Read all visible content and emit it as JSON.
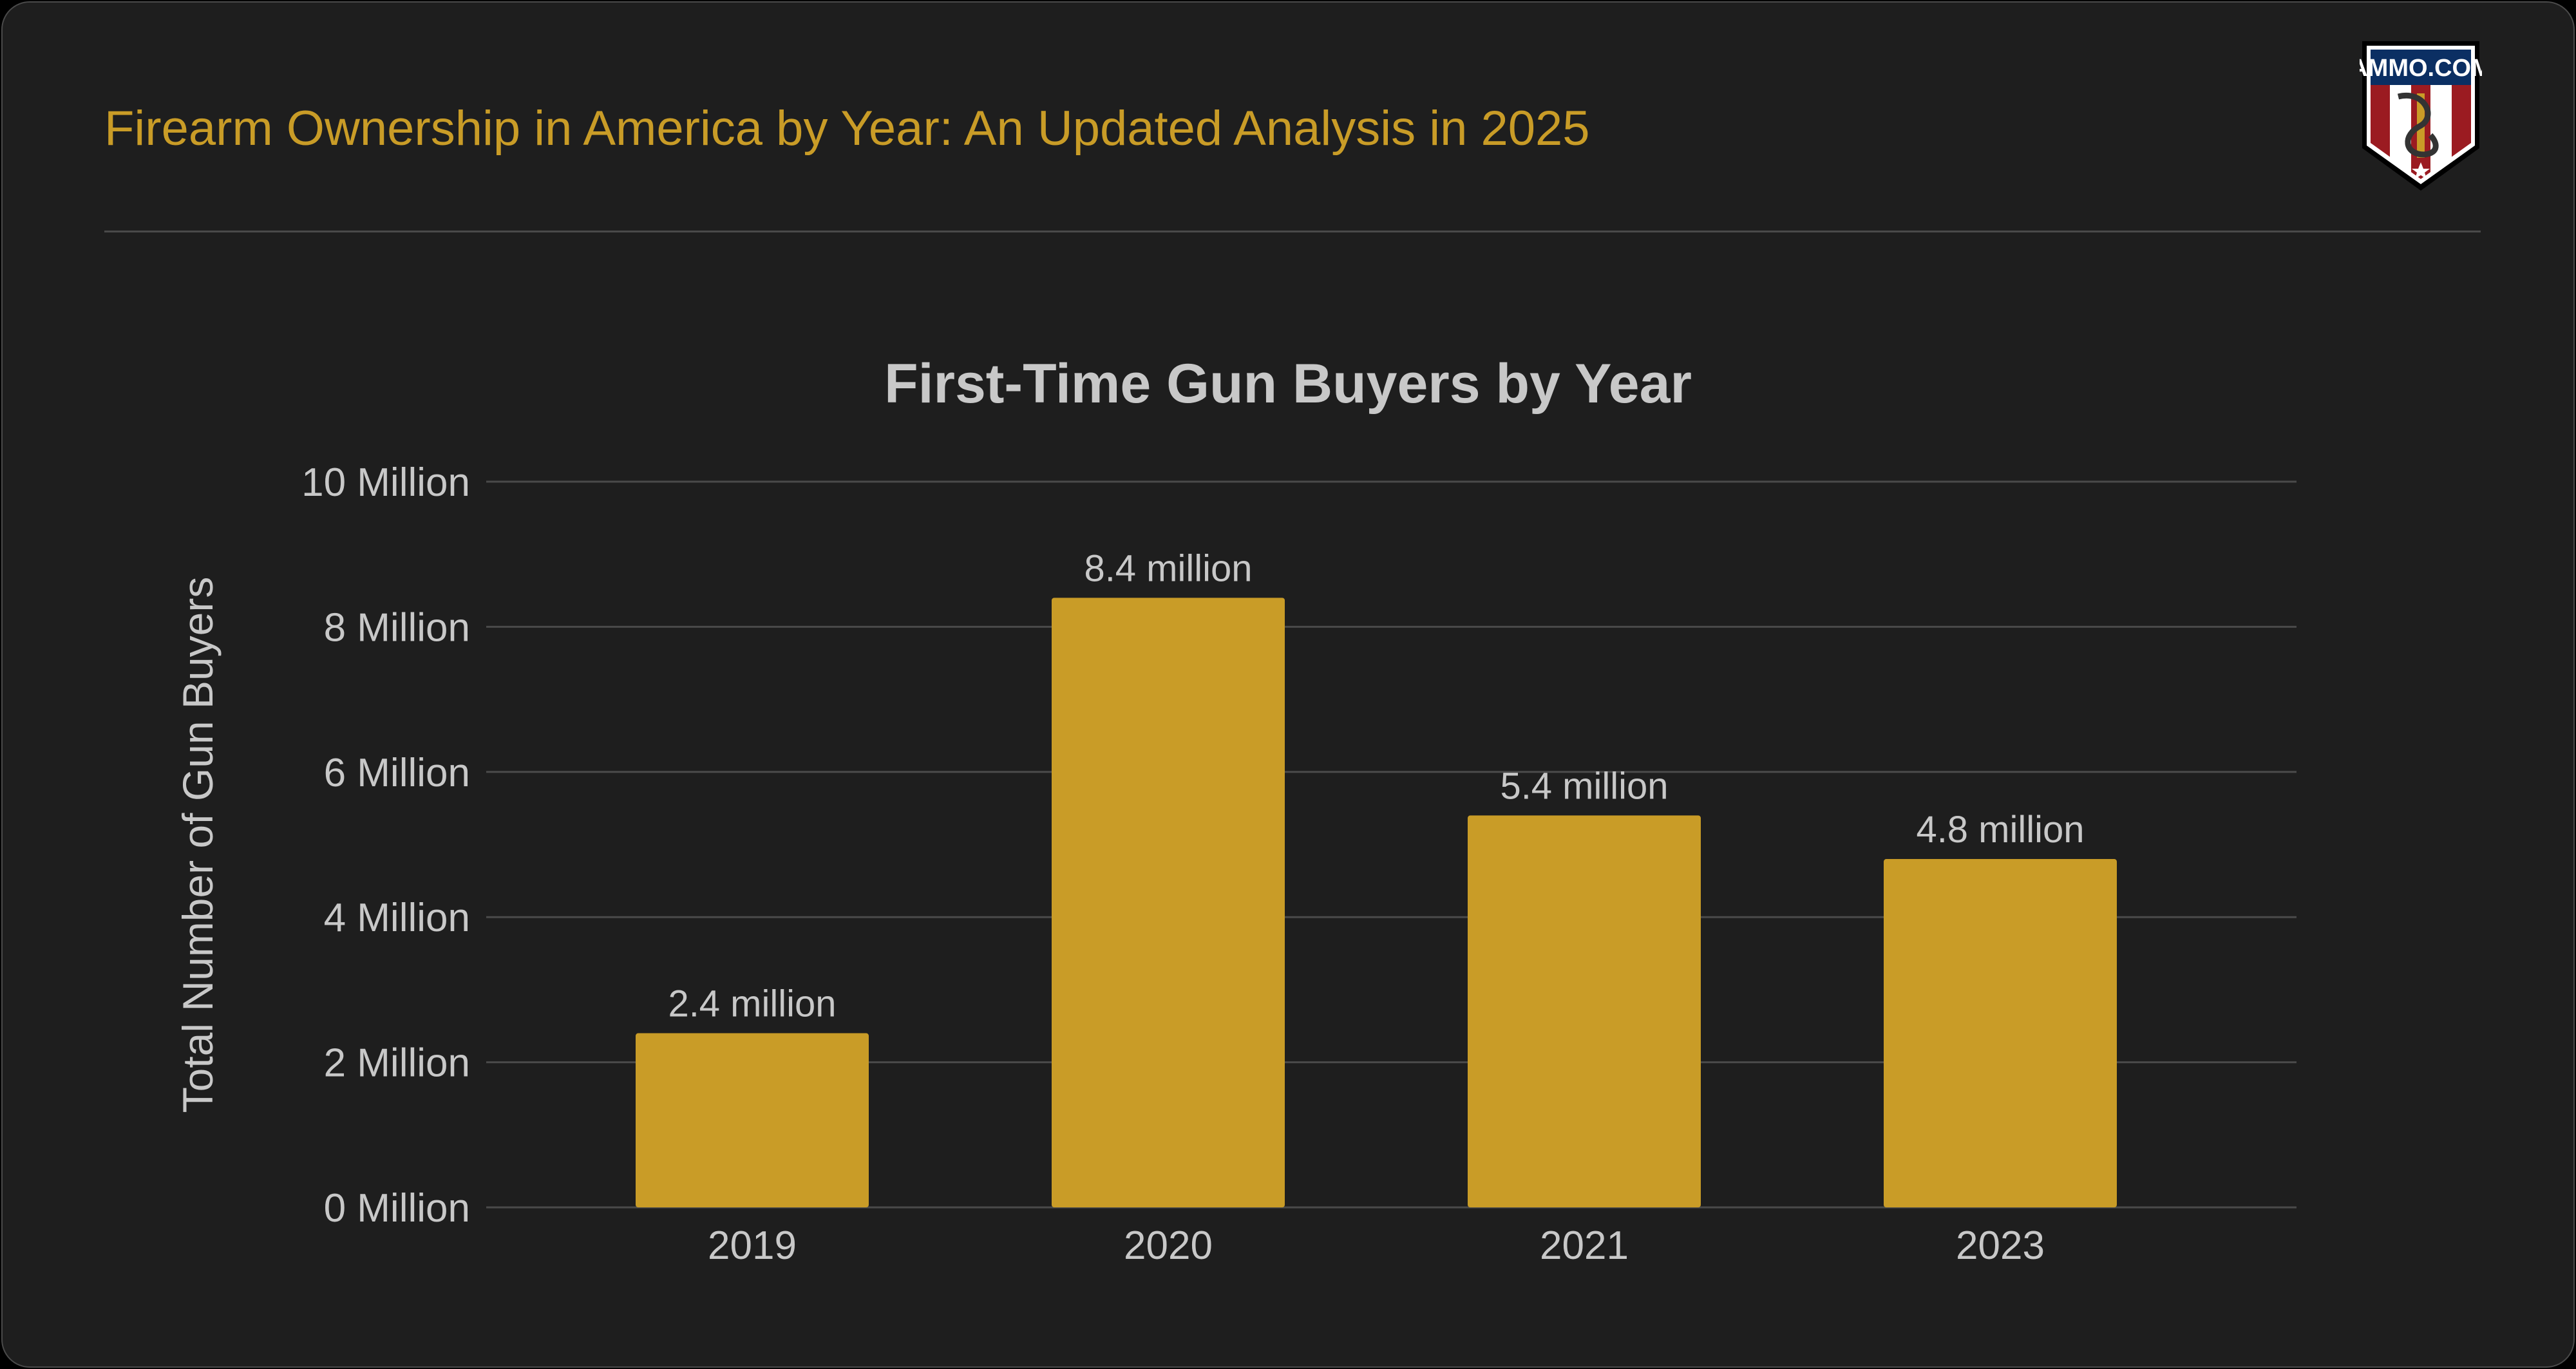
{
  "header": {
    "title": "Firearm Ownership in America by Year: An Updated Analysis in 2025",
    "logo_text": "AMMO.COM"
  },
  "colors": {
    "background": "#1e1e1e",
    "accent": "#c99c27",
    "text": "#c8c8c8",
    "grid": "#4a4a4a"
  },
  "chart_data": {
    "type": "bar",
    "title": "First-Time Gun Buyers by Year",
    "xlabel": "",
    "ylabel": "Total Number of Gun Buyers",
    "categories": [
      "2019",
      "2020",
      "2021",
      "2023"
    ],
    "values": [
      2.4,
      8.4,
      5.4,
      4.8
    ],
    "data_labels": [
      "2.4 million",
      "8.4 million",
      "5.4 million",
      "4.8 million"
    ],
    "unit": "million",
    "ylim": [
      0,
      10
    ],
    "yticks": [
      0,
      2,
      4,
      6,
      8,
      10
    ],
    "ytick_labels": [
      "0 Million",
      "2 Million",
      "4 Million",
      "6 Million",
      "8 Million",
      "10 Million"
    ],
    "grid": true,
    "legend": "none",
    "bar_color": "#c99c27"
  }
}
